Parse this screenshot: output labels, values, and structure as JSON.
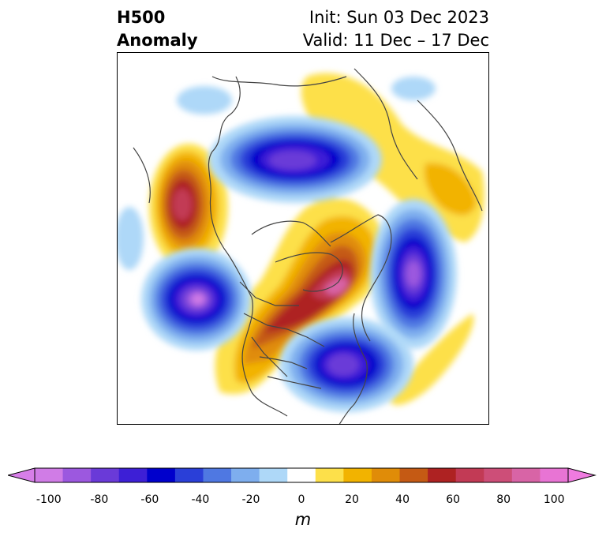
{
  "title": {
    "left_line1": "H500",
    "left_line2": "Anomaly",
    "right_line1": "Init: Sun 03 Dec 2023",
    "right_line2": "Valid: 11 Dec – 17 Dec"
  },
  "colorbar": {
    "units": "m",
    "ticks": [
      "-100",
      "-80",
      "-60",
      "-40",
      "-20",
      "0",
      "20",
      "40",
      "60",
      "80",
      "100"
    ],
    "colors": [
      "#d07ce6",
      "#9c58df",
      "#6a3ad8",
      "#3d1fd6",
      "#0000cc",
      "#2a3fd8",
      "#4f78e2",
      "#7eaeee",
      "#aed8f8",
      "#ffffff",
      "#fde04a",
      "#f2b300",
      "#e08c08",
      "#c55a14",
      "#ae2222",
      "#c23a55",
      "#cd4e78",
      "#d864a6",
      "#e874d4"
    ],
    "extend_left_color": "#d77ee8",
    "extend_right_color": "#ef7be0"
  }
}
